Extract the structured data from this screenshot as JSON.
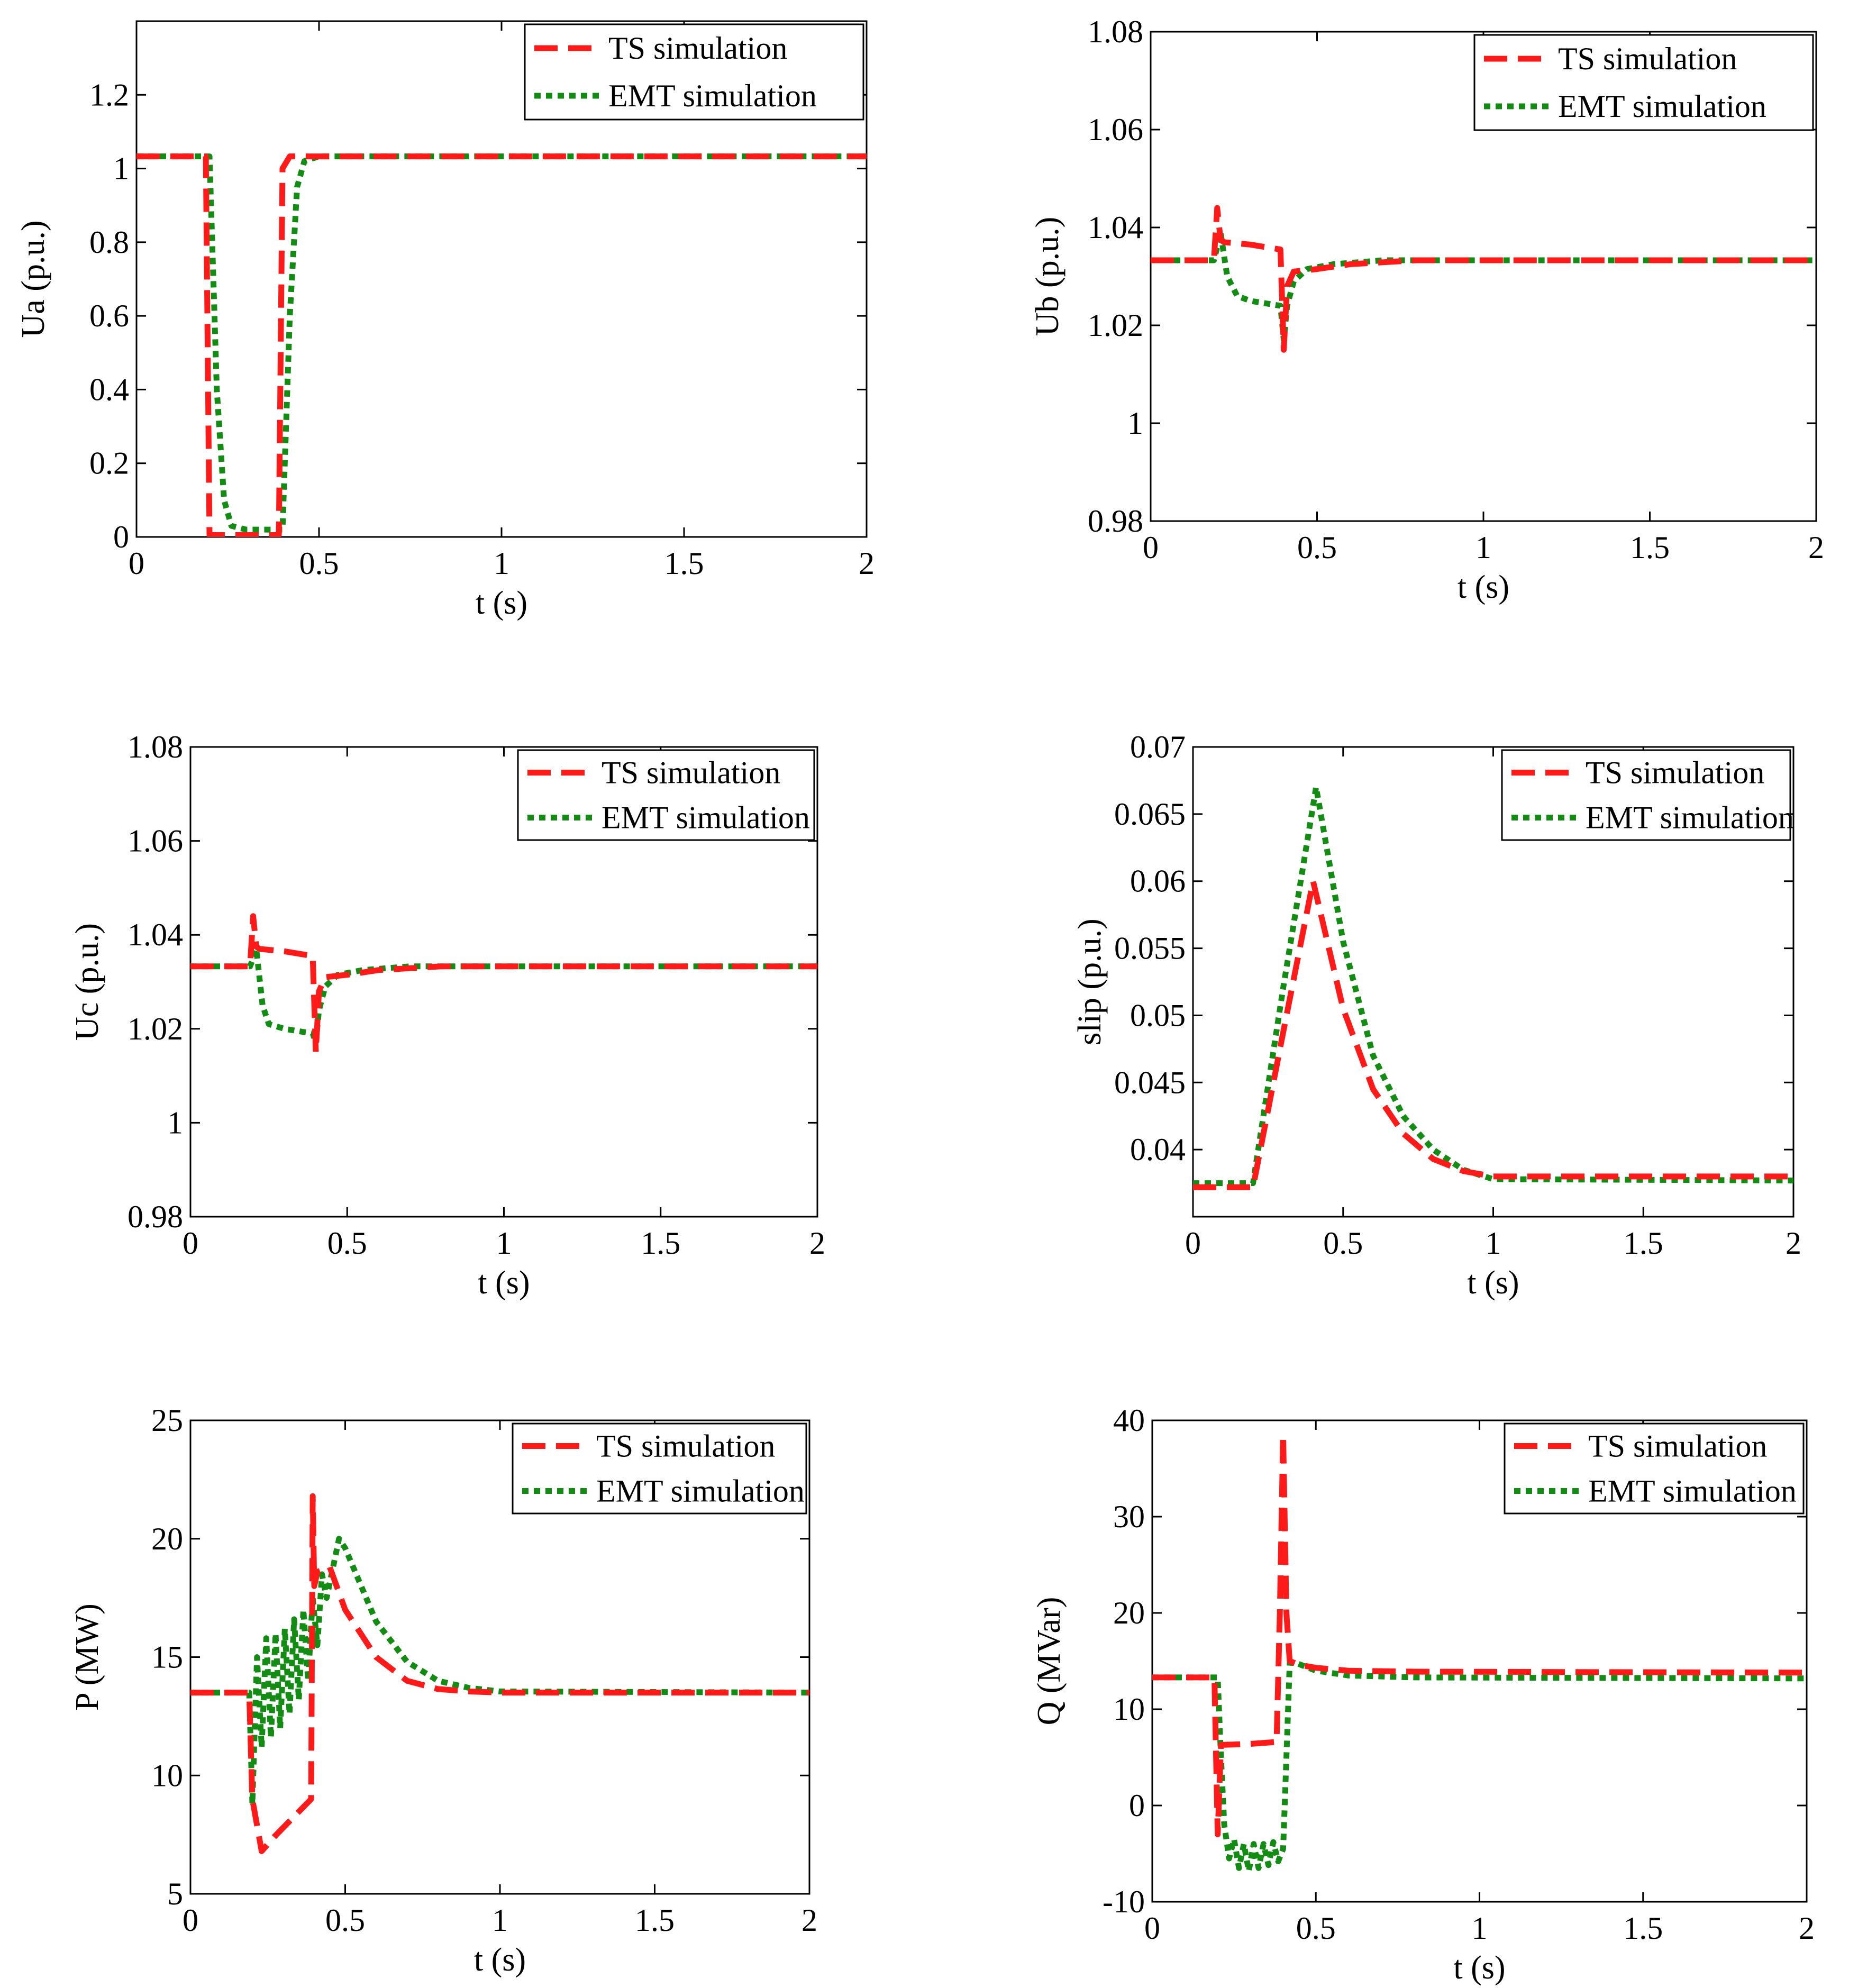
{
  "figure": {
    "title": ""
  },
  "colors": {
    "ts": "#ff1a1a",
    "emt": "#138c13",
    "axis": "#000000",
    "background": "#ffffff"
  },
  "legend": {
    "ts_label": "TS simulation",
    "emt_label": "EMT simulation"
  },
  "chart_data": [
    {
      "id": "ua",
      "type": "line",
      "xlabel": "t (s)",
      "ylabel": "Ua (p.u.)",
      "xlim": [
        0,
        2
      ],
      "ylim": [
        0,
        1.4
      ],
      "xticks": [
        0,
        0.5,
        1,
        1.5,
        2
      ],
      "xtick_labels": [
        "0",
        "0.5",
        "1",
        "1.5",
        "2"
      ],
      "yticks": [
        0,
        0.2,
        0.4,
        0.6,
        0.8,
        1,
        1.2
      ],
      "ytick_labels": [
        "0",
        "0.2",
        "0.4",
        "0.6",
        "0.8",
        "1",
        "1.2"
      ],
      "legend_position": "top-right",
      "series": [
        {
          "name": "TS simulation",
          "style": "dashed",
          "x": [
            0,
            0.19,
            0.2,
            0.39,
            0.4,
            0.42,
            2
          ],
          "y": [
            1.033,
            1.033,
            0.005,
            0.005,
            1.0,
            1.033,
            1.033
          ]
        },
        {
          "name": "EMT simulation",
          "style": "dotted",
          "x": [
            0,
            0.2,
            0.22,
            0.24,
            0.26,
            0.3,
            0.4,
            0.42,
            0.44,
            0.46,
            0.5,
            2
          ],
          "y": [
            1.033,
            1.033,
            0.4,
            0.1,
            0.03,
            0.02,
            0.02,
            0.6,
            0.95,
            1.02,
            1.033,
            1.033
          ]
        }
      ]
    },
    {
      "id": "ub",
      "type": "line",
      "xlabel": "t (s)",
      "ylabel": "Ub (p.u.)",
      "xlim": [
        0,
        2
      ],
      "ylim": [
        0.98,
        1.08
      ],
      "xticks": [
        0,
        0.5,
        1,
        1.5,
        2
      ],
      "xtick_labels": [
        "0",
        "0.5",
        "1",
        "1.5",
        "2"
      ],
      "yticks": [
        0.98,
        1,
        1.02,
        1.04,
        1.06,
        1.08
      ],
      "ytick_labels": [
        "0.98",
        "1",
        "1.02",
        "1.04",
        "1.06",
        "1.08"
      ],
      "legend_position": "top-right",
      "series": [
        {
          "name": "TS simulation",
          "style": "dashed",
          "x": [
            0,
            0.19,
            0.2,
            0.21,
            0.22,
            0.3,
            0.39,
            0.4,
            0.41,
            0.43,
            0.5,
            0.6,
            0.8,
            2
          ],
          "y": [
            1.0333,
            1.0333,
            1.044,
            1.0375,
            1.037,
            1.0365,
            1.0355,
            1.015,
            1.028,
            1.031,
            1.0315,
            1.0325,
            1.0333,
            1.0333
          ]
        },
        {
          "name": "EMT simulation",
          "style": "dotted",
          "x": [
            0,
            0.19,
            0.2,
            0.21,
            0.23,
            0.26,
            0.3,
            0.39,
            0.4,
            0.41,
            0.43,
            0.47,
            0.55,
            0.7,
            2
          ],
          "y": [
            1.0333,
            1.0333,
            1.036,
            1.039,
            1.03,
            1.026,
            1.025,
            1.024,
            1.017,
            1.024,
            1.029,
            1.0315,
            1.0325,
            1.0333,
            1.0333
          ]
        }
      ]
    },
    {
      "id": "uc",
      "type": "line",
      "xlabel": "t (s)",
      "ylabel": "Uc (p.u.)",
      "xlim": [
        0,
        2
      ],
      "ylim": [
        0.98,
        1.08
      ],
      "xticks": [
        0,
        0.5,
        1,
        1.5,
        2
      ],
      "xtick_labels": [
        "0",
        "0.5",
        "1",
        "1.5",
        "2"
      ],
      "yticks": [
        0.98,
        1,
        1.02,
        1.04,
        1.06,
        1.08
      ],
      "ytick_labels": [
        "0.98",
        "1",
        "1.02",
        "1.04",
        "1.06",
        "1.08"
      ],
      "legend_position": "top-right",
      "series": [
        {
          "name": "TS simulation",
          "style": "dashed",
          "x": [
            0,
            0.19,
            0.2,
            0.21,
            0.22,
            0.3,
            0.39,
            0.4,
            0.41,
            0.43,
            0.5,
            0.6,
            0.8,
            2
          ],
          "y": [
            1.0333,
            1.0333,
            1.044,
            1.0375,
            1.037,
            1.0365,
            1.0355,
            1.015,
            1.028,
            1.031,
            1.0315,
            1.0325,
            1.0333,
            1.0333
          ]
        },
        {
          "name": "EMT simulation",
          "style": "dotted",
          "x": [
            0,
            0.19,
            0.2,
            0.21,
            0.23,
            0.25,
            0.3,
            0.39,
            0.4,
            0.41,
            0.43,
            0.47,
            0.55,
            0.7,
            2
          ],
          "y": [
            1.0333,
            1.0333,
            1.035,
            1.037,
            1.025,
            1.021,
            1.02,
            1.019,
            1.017,
            1.024,
            1.029,
            1.0315,
            1.0325,
            1.0333,
            1.0333
          ]
        }
      ]
    },
    {
      "id": "slip",
      "type": "line",
      "xlabel": "t (s)",
      "ylabel": "slip (p.u.)",
      "xlim": [
        0,
        2
      ],
      "ylim": [
        0.035,
        0.07
      ],
      "xticks": [
        0,
        0.5,
        1,
        1.5,
        2
      ],
      "xtick_labels": [
        "0",
        "0.5",
        "1",
        "1.5",
        "2"
      ],
      "yticks": [
        0.04,
        0.045,
        0.05,
        0.055,
        0.06,
        0.065,
        0.07
      ],
      "ytick_labels": [
        "0.04",
        "0.045",
        "0.05",
        "0.055",
        "0.06",
        "0.065",
        "0.07"
      ],
      "legend_position": "top-right",
      "series": [
        {
          "name": "TS simulation",
          "style": "dashed",
          "x": [
            0,
            0.2,
            0.3,
            0.4,
            0.5,
            0.6,
            0.7,
            0.8,
            0.9,
            1.0,
            2
          ],
          "y": [
            0.0372,
            0.0372,
            0.0487,
            0.06,
            0.0505,
            0.0445,
            0.0412,
            0.0393,
            0.0384,
            0.038,
            0.038
          ]
        },
        {
          "name": "EMT simulation",
          "style": "dotted",
          "x": [
            0,
            0.2,
            0.3,
            0.41,
            0.5,
            0.6,
            0.7,
            0.8,
            0.9,
            1.0,
            2
          ],
          "y": [
            0.0375,
            0.0375,
            0.052,
            0.067,
            0.0555,
            0.047,
            0.0425,
            0.04,
            0.0385,
            0.0378,
            0.0377
          ]
        }
      ]
    },
    {
      "id": "p",
      "type": "line",
      "xlabel": "t (s)",
      "ylabel": "P (MW)",
      "xlim": [
        0,
        2
      ],
      "ylim": [
        5,
        25
      ],
      "xticks": [
        0,
        0.5,
        1,
        1.5,
        2
      ],
      "xtick_labels": [
        "0",
        "0.5",
        "1",
        "1.5",
        "2"
      ],
      "yticks": [
        5,
        10,
        15,
        20,
        25
      ],
      "ytick_labels": [
        "5",
        "10",
        "15",
        "20",
        "25"
      ],
      "legend_position": "top-right",
      "series": [
        {
          "name": "TS simulation",
          "style": "dashed",
          "x": [
            0,
            0.19,
            0.2,
            0.23,
            0.27,
            0.33,
            0.39,
            0.395,
            0.4,
            0.41,
            0.45,
            0.5,
            0.6,
            0.7,
            0.8,
            0.9,
            1.0,
            2
          ],
          "y": [
            13.5,
            13.5,
            9.0,
            6.8,
            7.4,
            8.2,
            9.0,
            21.8,
            18.0,
            18.6,
            18.8,
            17.0,
            15.0,
            14.0,
            13.65,
            13.55,
            13.5,
            13.5
          ]
        },
        {
          "name": "EMT simulation",
          "style": "dotted",
          "x": [
            0,
            0.19,
            0.2,
            0.215,
            0.23,
            0.245,
            0.26,
            0.275,
            0.29,
            0.305,
            0.32,
            0.335,
            0.35,
            0.365,
            0.38,
            0.395,
            0.41,
            0.425,
            0.44,
            0.48,
            0.5,
            0.6,
            0.7,
            0.8,
            0.9,
            1.0,
            2
          ],
          "y": [
            13.5,
            13.5,
            8.8,
            15.0,
            11.2,
            15.8,
            11.6,
            16.0,
            12.0,
            16.2,
            12.6,
            16.6,
            13.2,
            17.0,
            14.0,
            17.5,
            15.5,
            18.5,
            17.5,
            20.0,
            19.6,
            16.5,
            14.8,
            14.0,
            13.7,
            13.55,
            13.5
          ]
        }
      ]
    },
    {
      "id": "q",
      "type": "line",
      "xlabel": "t (s)",
      "ylabel": "Q (MVar)",
      "xlim": [
        0,
        2
      ],
      "ylim": [
        -10,
        40
      ],
      "xticks": [
        0,
        0.5,
        1,
        1.5,
        2
      ],
      "xtick_labels": [
        "0",
        "0.5",
        "1",
        "1.5",
        "2"
      ],
      "yticks": [
        -10,
        0,
        10,
        20,
        30,
        40
      ],
      "ytick_labels": [
        "-10",
        "0",
        "10",
        "20",
        "30",
        "40"
      ],
      "legend_position": "top-right",
      "series": [
        {
          "name": "TS simulation",
          "style": "dashed",
          "x": [
            0,
            0.19,
            0.2,
            0.21,
            0.22,
            0.3,
            0.38,
            0.39,
            0.4,
            0.41,
            0.42,
            0.45,
            0.5,
            0.6,
            0.8,
            2
          ],
          "y": [
            13.3,
            13.3,
            -3.0,
            6.3,
            6.3,
            6.4,
            6.6,
            20.0,
            38.5,
            20.0,
            15.0,
            14.6,
            14.3,
            14.0,
            13.9,
            13.8
          ]
        },
        {
          "name": "EMT simulation",
          "style": "dotted",
          "x": [
            0,
            0.2,
            0.21,
            0.22,
            0.235,
            0.25,
            0.265,
            0.28,
            0.295,
            0.31,
            0.325,
            0.34,
            0.355,
            0.37,
            0.385,
            0.4,
            0.41,
            0.42,
            0.44,
            0.5,
            0.6,
            0.8,
            2
          ],
          "y": [
            13.3,
            13.3,
            5.0,
            -2.0,
            -5.5,
            -3.5,
            -6.5,
            -4.0,
            -6.8,
            -4.0,
            -6.5,
            -4.0,
            -6.2,
            -3.8,
            -5.8,
            -4.5,
            5.0,
            14.8,
            14.8,
            14.0,
            13.5,
            13.3,
            13.2
          ]
        }
      ]
    }
  ]
}
